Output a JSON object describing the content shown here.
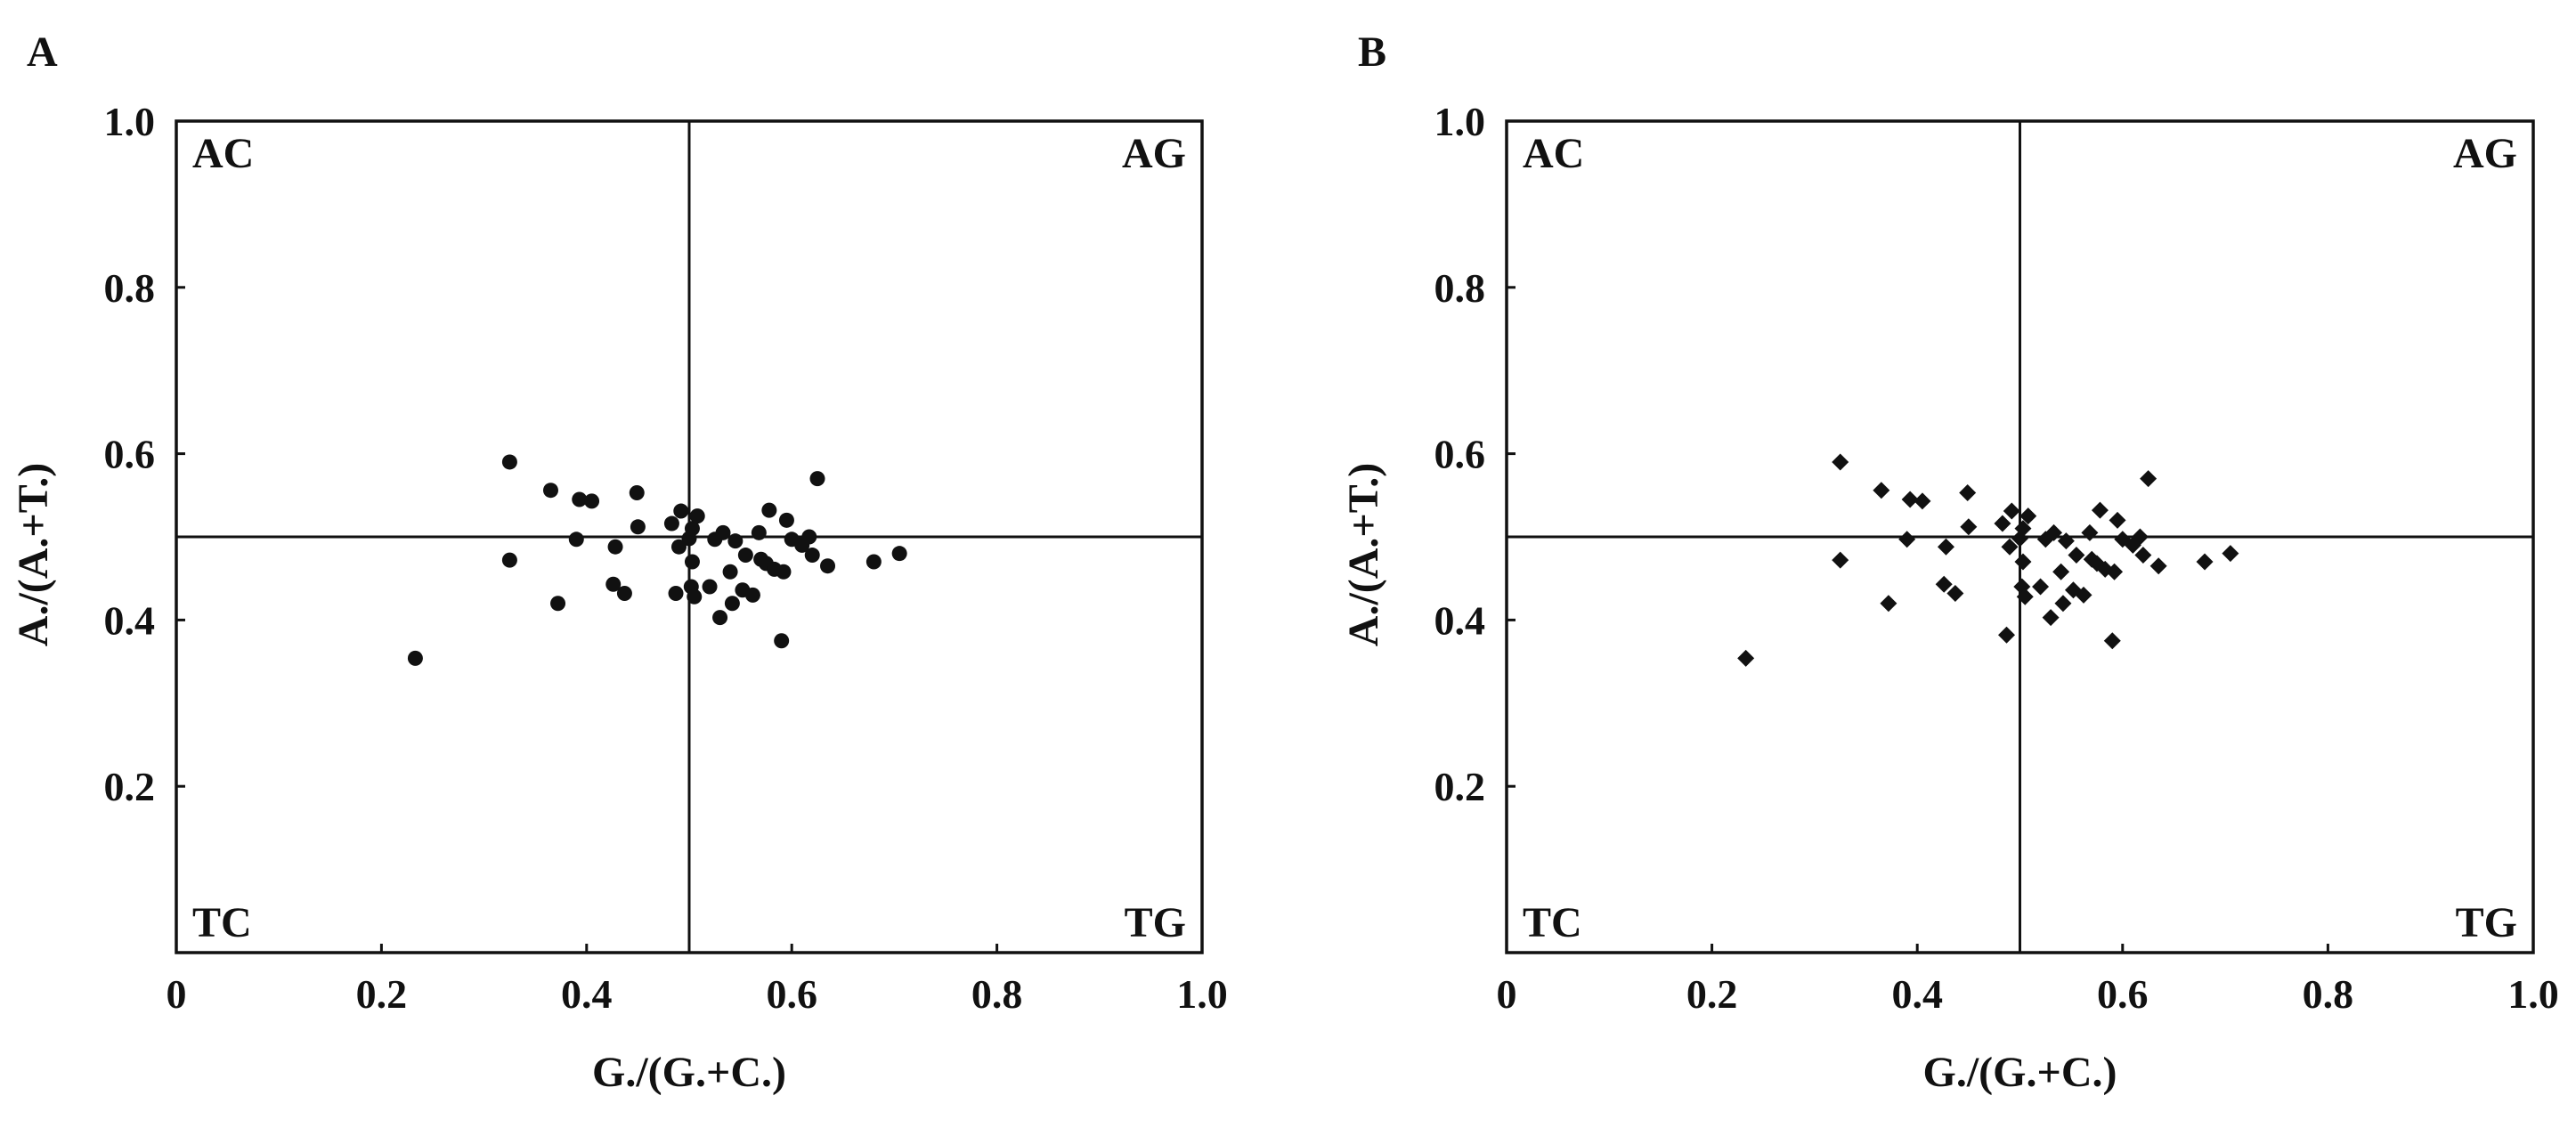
{
  "chart_data": [
    {
      "type": "scatter",
      "panel_label": "A",
      "marker": "circle",
      "xlabel": "G./(G.+C.)",
      "ylabel": "A./(A.+T.)",
      "xlim": [
        0,
        1.0
      ],
      "ylim": [
        0,
        1.0
      ],
      "xticks": [
        0,
        0.2,
        0.4,
        0.6,
        0.8,
        1.0
      ],
      "xtick_labels": [
        "0",
        "0.2",
        "0.4",
        "0.6",
        "0.8",
        "1.0"
      ],
      "yticks": [
        0.2,
        0.4,
        0.6,
        0.8,
        1.0
      ],
      "ytick_labels": [
        "0.2",
        "0.4",
        "0.6",
        "0.8",
        "1.0"
      ],
      "reference_lines": {
        "x": 0.5,
        "y": 0.5
      },
      "quadrant_labels": {
        "top_left": "AC",
        "top_right": "AG",
        "bottom_left": "TC",
        "bottom_right": "TG"
      },
      "grid": false,
      "color": "#111111",
      "points": [
        [
          0.233,
          0.354
        ],
        [
          0.325,
          0.59
        ],
        [
          0.325,
          0.472
        ],
        [
          0.365,
          0.556
        ],
        [
          0.372,
          0.42
        ],
        [
          0.39,
          0.497
        ],
        [
          0.393,
          0.545
        ],
        [
          0.405,
          0.543
        ],
        [
          0.426,
          0.443
        ],
        [
          0.428,
          0.488
        ],
        [
          0.437,
          0.432
        ],
        [
          0.449,
          0.553
        ],
        [
          0.45,
          0.512
        ],
        [
          0.483,
          0.516
        ],
        [
          0.487,
          0.432
        ],
        [
          0.49,
          0.488
        ],
        [
          0.492,
          0.531
        ],
        [
          0.5,
          0.498
        ],
        [
          0.502,
          0.44
        ],
        [
          0.503,
          0.47
        ],
        [
          0.503,
          0.51
        ],
        [
          0.505,
          0.428
        ],
        [
          0.508,
          0.525
        ],
        [
          0.52,
          0.44
        ],
        [
          0.525,
          0.497
        ],
        [
          0.53,
          0.403
        ],
        [
          0.533,
          0.505
        ],
        [
          0.54,
          0.458
        ],
        [
          0.542,
          0.42
        ],
        [
          0.545,
          0.495
        ],
        [
          0.552,
          0.436
        ],
        [
          0.555,
          0.478
        ],
        [
          0.562,
          0.43
        ],
        [
          0.568,
          0.505
        ],
        [
          0.57,
          0.473
        ],
        [
          0.575,
          0.468
        ],
        [
          0.578,
          0.532
        ],
        [
          0.583,
          0.461
        ],
        [
          0.59,
          0.375
        ],
        [
          0.592,
          0.458
        ],
        [
          0.595,
          0.52
        ],
        [
          0.6,
          0.497
        ],
        [
          0.61,
          0.49
        ],
        [
          0.617,
          0.5
        ],
        [
          0.62,
          0.478
        ],
        [
          0.625,
          0.57
        ],
        [
          0.635,
          0.465
        ],
        [
          0.68,
          0.47
        ],
        [
          0.705,
          0.48
        ]
      ]
    },
    {
      "type": "scatter",
      "panel_label": "B",
      "marker": "diamond",
      "xlabel": "G./(G.+C.)",
      "ylabel": "A./(A.+T.)",
      "xlim": [
        0,
        1.0
      ],
      "ylim": [
        0,
        1.0
      ],
      "xticks": [
        0,
        0.2,
        0.4,
        0.6,
        0.8,
        1.0
      ],
      "xtick_labels": [
        "0",
        "0.2",
        "0.4",
        "0.6",
        "0.8",
        "1.0"
      ],
      "yticks": [
        0.2,
        0.4,
        0.6,
        0.8,
        1.0
      ],
      "ytick_labels": [
        "0.2",
        "0.4",
        "0.6",
        "0.8",
        "1.0"
      ],
      "reference_lines": {
        "x": 0.5,
        "y": 0.5
      },
      "quadrant_labels": {
        "top_left": "AC",
        "top_right": "AG",
        "bottom_left": "TC",
        "bottom_right": "TG"
      },
      "grid": false,
      "color": "#111111",
      "points": [
        [
          0.233,
          0.354
        ],
        [
          0.325,
          0.59
        ],
        [
          0.325,
          0.472
        ],
        [
          0.365,
          0.556
        ],
        [
          0.372,
          0.42
        ],
        [
          0.39,
          0.497
        ],
        [
          0.393,
          0.545
        ],
        [
          0.405,
          0.543
        ],
        [
          0.426,
          0.443
        ],
        [
          0.428,
          0.488
        ],
        [
          0.437,
          0.432
        ],
        [
          0.449,
          0.553
        ],
        [
          0.45,
          0.512
        ],
        [
          0.483,
          0.516
        ],
        [
          0.487,
          0.382
        ],
        [
          0.49,
          0.488
        ],
        [
          0.492,
          0.531
        ],
        [
          0.5,
          0.498
        ],
        [
          0.502,
          0.44
        ],
        [
          0.503,
          0.47
        ],
        [
          0.503,
          0.51
        ],
        [
          0.505,
          0.428
        ],
        [
          0.508,
          0.525
        ],
        [
          0.52,
          0.44
        ],
        [
          0.525,
          0.497
        ],
        [
          0.53,
          0.403
        ],
        [
          0.533,
          0.505
        ],
        [
          0.54,
          0.458
        ],
        [
          0.542,
          0.42
        ],
        [
          0.545,
          0.495
        ],
        [
          0.552,
          0.436
        ],
        [
          0.555,
          0.478
        ],
        [
          0.562,
          0.43
        ],
        [
          0.568,
          0.505
        ],
        [
          0.57,
          0.473
        ],
        [
          0.575,
          0.468
        ],
        [
          0.578,
          0.532
        ],
        [
          0.583,
          0.461
        ],
        [
          0.59,
          0.375
        ],
        [
          0.592,
          0.458
        ],
        [
          0.595,
          0.52
        ],
        [
          0.6,
          0.497
        ],
        [
          0.61,
          0.49
        ],
        [
          0.617,
          0.5
        ],
        [
          0.62,
          0.478
        ],
        [
          0.625,
          0.57
        ],
        [
          0.635,
          0.465
        ],
        [
          0.68,
          0.47
        ],
        [
          0.705,
          0.48
        ]
      ]
    }
  ]
}
